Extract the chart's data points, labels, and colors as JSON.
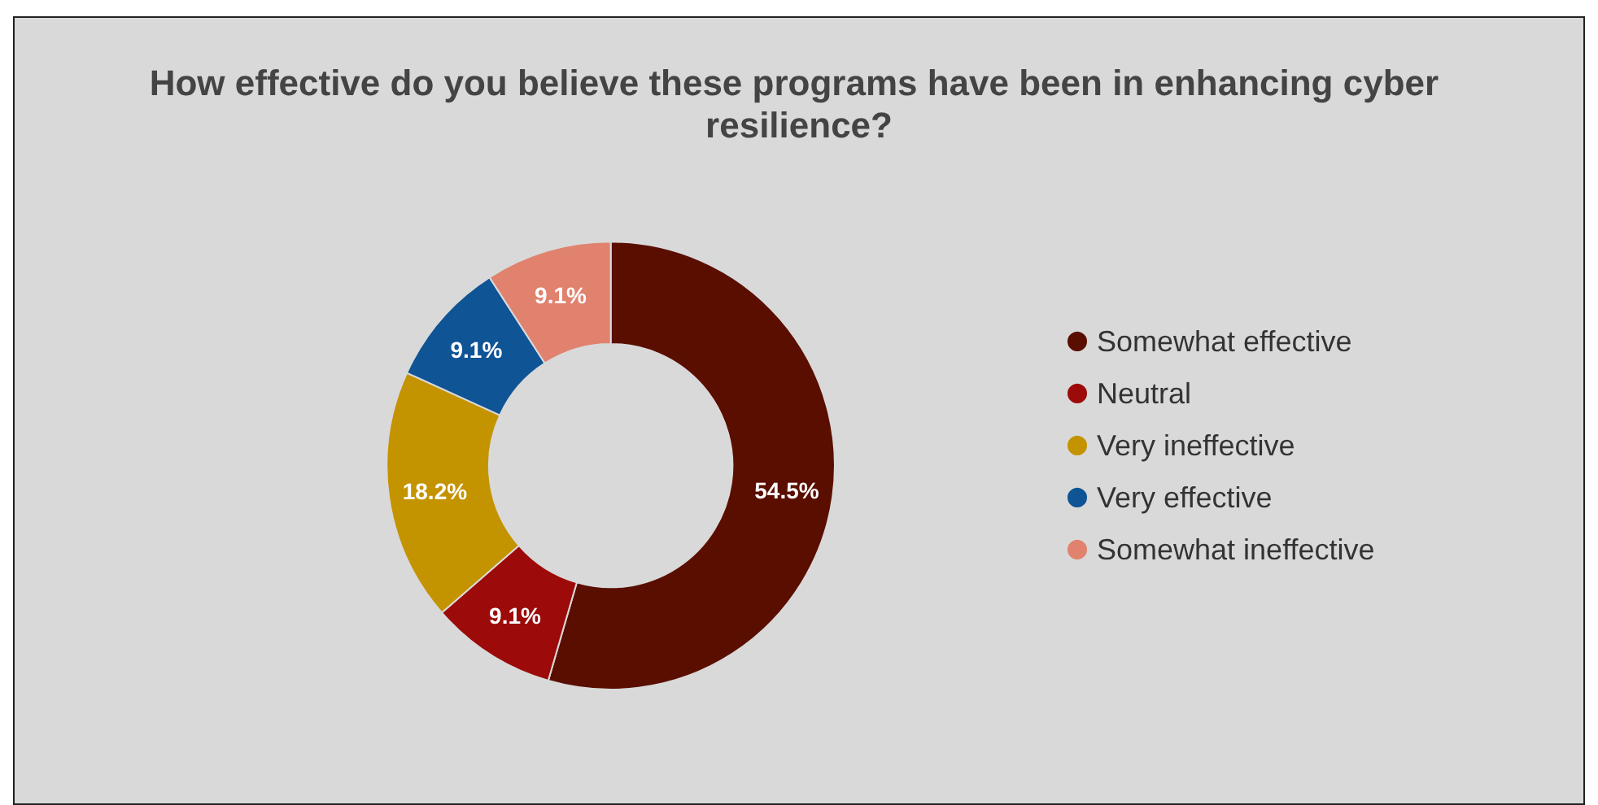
{
  "chart_data": {
    "type": "donut",
    "title": "How effective do you believe these programs have been in enhancing cyber resilience?",
    "categories": [
      "Somewhat effective",
      "Neutral",
      "Very ineffective",
      "Very effective",
      "Somewhat ineffective"
    ],
    "values": [
      54.5,
      9.1,
      18.2,
      9.1,
      9.1
    ],
    "value_labels": [
      "54.5%",
      "9.1%",
      "18.2%",
      "9.1%",
      "9.1%"
    ],
    "colors": [
      "#5a0e00",
      "#9c0a0a",
      "#c49300",
      "#0f5495",
      "#e0826e"
    ],
    "legend": "right"
  }
}
